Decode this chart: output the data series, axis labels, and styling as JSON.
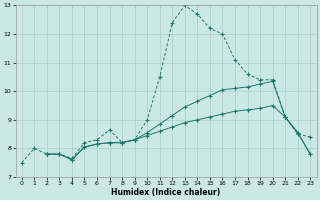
{
  "xlabel": "Humidex (Indice chaleur)",
  "xlim": [
    -0.5,
    23.5
  ],
  "ylim": [
    7,
    13
  ],
  "xticks": [
    0,
    1,
    2,
    3,
    4,
    5,
    6,
    7,
    8,
    9,
    10,
    11,
    12,
    13,
    14,
    15,
    16,
    17,
    18,
    19,
    20,
    21,
    22,
    23
  ],
  "yticks": [
    7,
    8,
    9,
    10,
    11,
    12,
    13
  ],
  "bg_color": "#cce8e4",
  "grid_color": "#aacfcb",
  "line_color": "#1a7a6e",
  "line1_x": [
    0,
    1,
    2,
    3,
    4,
    5,
    6,
    7,
    8,
    9,
    10,
    11,
    12,
    13,
    14,
    15,
    16,
    17,
    18,
    19,
    20,
    21,
    22,
    23
  ],
  "line1_y": [
    7.5,
    8.0,
    7.8,
    7.8,
    7.65,
    8.2,
    8.3,
    8.65,
    8.2,
    8.3,
    9.0,
    10.5,
    12.4,
    13.0,
    12.7,
    12.2,
    12.0,
    11.1,
    10.6,
    10.4,
    10.4,
    9.1,
    8.5,
    8.4
  ],
  "line2_x": [
    2,
    3,
    4,
    5,
    6,
    7,
    8,
    9,
    10,
    11,
    12,
    13,
    14,
    15,
    16,
    17,
    18,
    19,
    20,
    21,
    22,
    23
  ],
  "line2_y": [
    7.8,
    7.8,
    7.6,
    8.05,
    8.15,
    8.2,
    8.2,
    8.3,
    8.45,
    8.6,
    8.75,
    8.9,
    9.0,
    9.1,
    9.2,
    9.3,
    9.35,
    9.4,
    9.5,
    9.1,
    8.55,
    7.8
  ],
  "line3_x": [
    2,
    3,
    4,
    5,
    6,
    7,
    8,
    9,
    10,
    11,
    12,
    13,
    14,
    15,
    16,
    17,
    18,
    19,
    20,
    21,
    22,
    23
  ],
  "line3_y": [
    7.8,
    7.8,
    7.6,
    8.05,
    8.15,
    8.2,
    8.2,
    8.3,
    8.55,
    8.85,
    9.15,
    9.45,
    9.65,
    9.85,
    10.05,
    10.1,
    10.15,
    10.25,
    10.35,
    9.1,
    8.55,
    7.8
  ]
}
